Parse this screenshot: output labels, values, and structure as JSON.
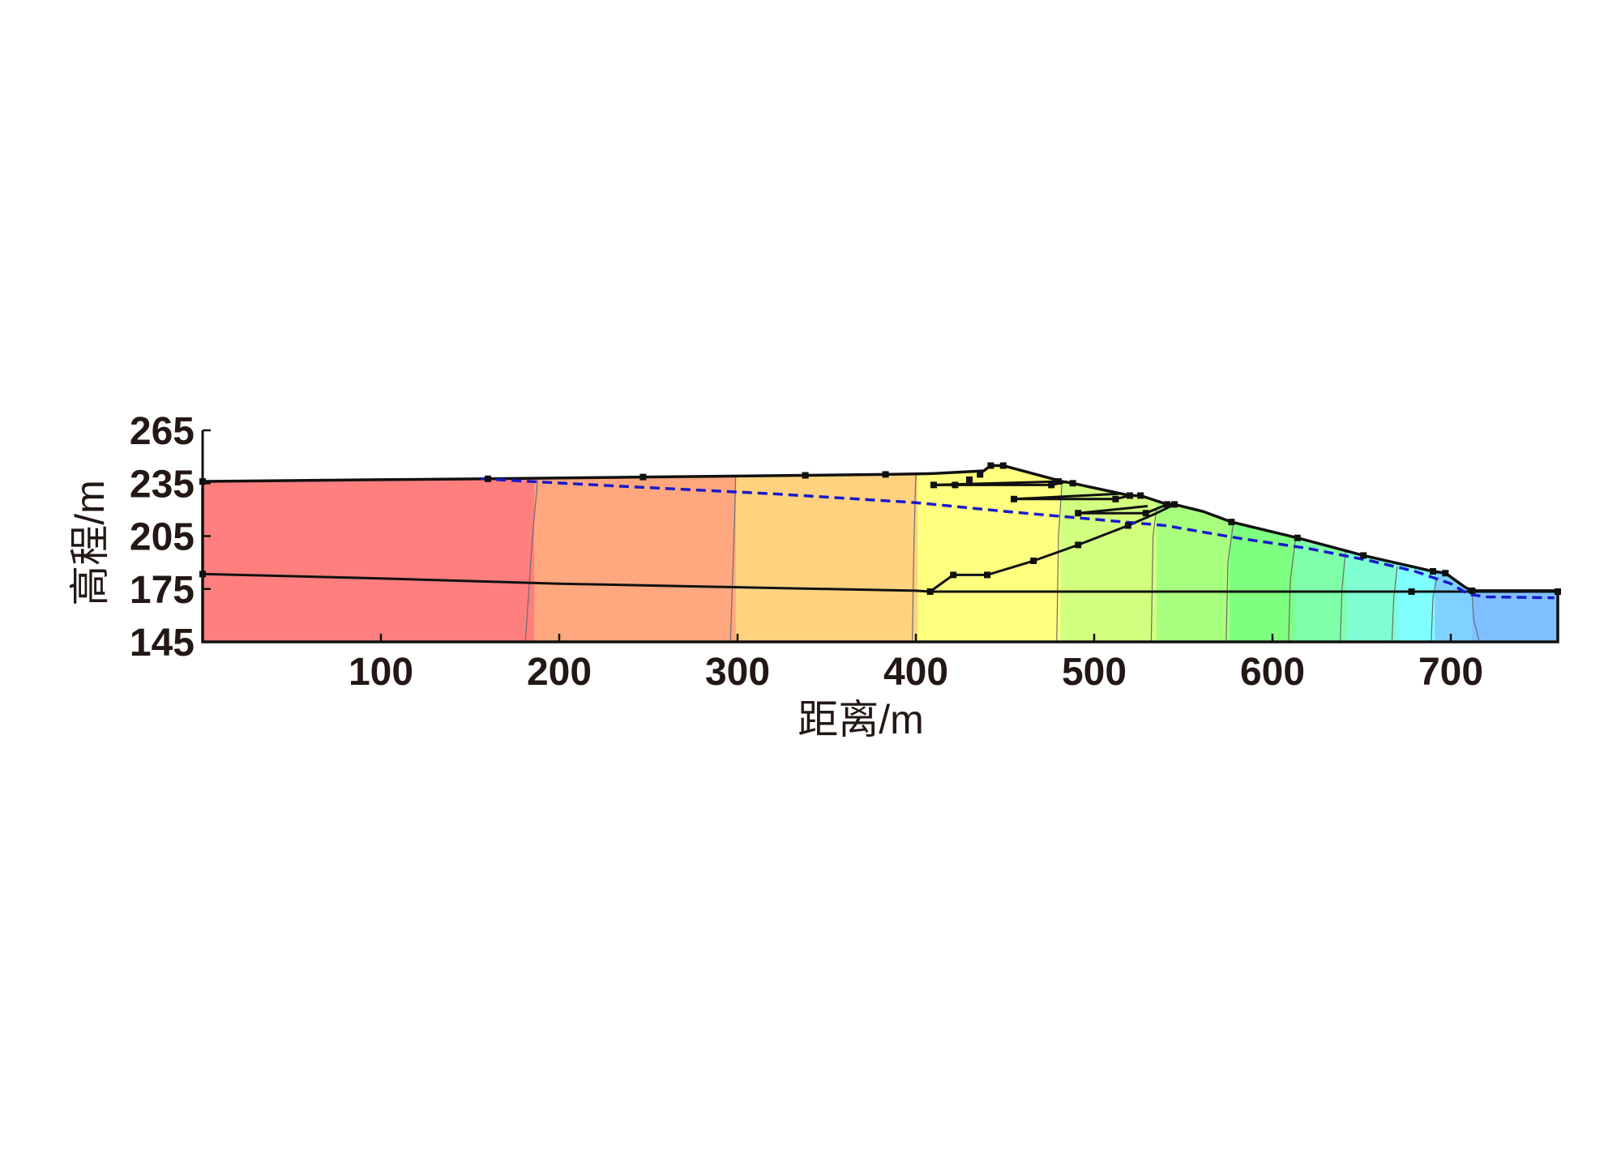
{
  "chart_data": {
    "type": "area",
    "xlabel": "距离/m",
    "ylabel": "高程/m",
    "xlim": [
      0,
      760
    ],
    "ylim": [
      145,
      265
    ],
    "x_ticks": [
      100,
      200,
      300,
      400,
      500,
      600,
      700
    ],
    "y_ticks": [
      145,
      175,
      205,
      235,
      265
    ],
    "x_tick_labels": [
      "100",
      "200",
      "300",
      "400",
      "500",
      "600",
      "700"
    ],
    "y_tick_labels": [
      "145",
      "175",
      "205",
      "235",
      "265"
    ],
    "grid": false,
    "color_bands": [
      {
        "x_from": 0,
        "x_to": 186,
        "color": "#ff7f7f"
      },
      {
        "x_from": 186,
        "x_to": 299,
        "color": "#ffa87f"
      },
      {
        "x_from": 299,
        "x_to": 401,
        "color": "#ffd27f"
      },
      {
        "x_from": 401,
        "x_to": 481,
        "color": "#ffff7f"
      },
      {
        "x_from": 481,
        "x_to": 535,
        "color": "#d2ff7f"
      },
      {
        "x_from": 535,
        "x_to": 576,
        "color": "#a8ff7f"
      },
      {
        "x_from": 576,
        "x_to": 612,
        "color": "#7fff7f"
      },
      {
        "x_from": 612,
        "x_to": 641,
        "color": "#7fffa8"
      },
      {
        "x_from": 641,
        "x_to": 670,
        "color": "#7fffd2"
      },
      {
        "x_from": 670,
        "x_to": 691,
        "color": "#7fffff"
      },
      {
        "x_from": 691,
        "x_to": 712,
        "color": "#7fd2ff"
      },
      {
        "x_from": 712,
        "x_to": 760,
        "color": "#7fbfff"
      }
    ],
    "contour_lines": [
      [
        [
          188,
          238
        ],
        [
          185,
          205
        ],
        [
          181,
          145
        ]
      ],
      [
        [
          299,
          240
        ],
        [
          298,
          205
        ],
        [
          296,
          145
        ]
      ],
      [
        [
          400,
          241
        ],
        [
          399,
          205
        ],
        [
          398,
          145
        ]
      ],
      [
        [
          482,
          236
        ],
        [
          480,
          205
        ],
        [
          479,
          145
        ]
      ],
      [
        [
          535,
          221
        ],
        [
          533,
          205
        ],
        [
          532,
          145
        ]
      ],
      [
        [
          578,
          212
        ],
        [
          575,
          190
        ],
        [
          574,
          145
        ]
      ],
      [
        [
          613,
          204
        ],
        [
          610,
          180
        ],
        [
          609,
          145
        ]
      ],
      [
        [
          641,
          197
        ],
        [
          639,
          175
        ],
        [
          638,
          145
        ]
      ],
      [
        [
          670,
          188
        ],
        [
          668,
          170
        ],
        [
          667,
          145
        ]
      ],
      [
        [
          692,
          181
        ],
        [
          690,
          170
        ],
        [
          689,
          145
        ]
      ],
      [
        [
          712,
          171
        ],
        [
          713,
          157
        ],
        [
          716,
          145
        ]
      ]
    ],
    "boundary": {
      "upstream_surface": [
        [
          0,
          236
        ],
        [
          100,
          237
        ],
        [
          160,
          237.5
        ],
        [
          247,
          238.5
        ],
        [
          338,
          239.5
        ],
        [
          383,
          240
        ],
        [
          410,
          240.5
        ]
      ],
      "dam_crest": [
        [
          410,
          240.5
        ],
        [
          438,
          242
        ],
        [
          442,
          245
        ],
        [
          449,
          245
        ],
        [
          482,
          236
        ],
        [
          488,
          235
        ],
        [
          520,
          228
        ],
        [
          526,
          228
        ],
        [
          541,
          223
        ],
        [
          545,
          223
        ],
        [
          561,
          219
        ],
        [
          577,
          213
        ],
        [
          614,
          204
        ],
        [
          651,
          194
        ],
        [
          690,
          185
        ],
        [
          697,
          184
        ],
        [
          708,
          176
        ],
        [
          712,
          174
        ]
      ],
      "downstream_surface": [
        [
          712,
          174
        ],
        [
          760,
          174
        ]
      ],
      "right_edge": [
        [
          760,
          174
        ],
        [
          760,
          145
        ]
      ]
    },
    "foundation_line": [
      [
        0,
        183.5
      ],
      [
        100,
        181
      ],
      [
        200,
        178
      ],
      [
        300,
        176
      ],
      [
        400,
        174
      ],
      [
        408,
        173.5
      ],
      [
        760,
        173.5
      ]
    ],
    "internal_zone_lines": [
      [
        [
          408,
          173.5
        ],
        [
          421,
          183
        ],
        [
          440,
          183
        ],
        [
          466,
          191
        ],
        [
          491,
          200
        ],
        [
          519,
          211
        ],
        [
          535,
          218
        ],
        [
          545,
          223
        ]
      ],
      [
        [
          410,
          234
        ],
        [
          476,
          234
        ],
        [
          485,
          236
        ]
      ],
      [
        [
          410,
          234
        ],
        [
          480,
          236
        ]
      ],
      [
        [
          455,
          226
        ],
        [
          512,
          226
        ],
        [
          520,
          228
        ]
      ],
      [
        [
          455,
          226
        ],
        [
          514,
          229
        ]
      ],
      [
        [
          491,
          218
        ],
        [
          529,
          218
        ],
        [
          541,
          223
        ]
      ],
      [
        [
          491,
          218
        ],
        [
          530,
          222
        ]
      ]
    ],
    "markers": [
      [
        0,
        236
      ],
      [
        0,
        183.5
      ],
      [
        160,
        237.5
      ],
      [
        247,
        238.5
      ],
      [
        338,
        239.5
      ],
      [
        383,
        240
      ],
      [
        410,
        234
      ],
      [
        422,
        234
      ],
      [
        430,
        237
      ],
      [
        436,
        240
      ],
      [
        442,
        245
      ],
      [
        449,
        245
      ],
      [
        476,
        234
      ],
      [
        480,
        236
      ],
      [
        488,
        235
      ],
      [
        455,
        226
      ],
      [
        512,
        226
      ],
      [
        520,
        228
      ],
      [
        526,
        228
      ],
      [
        491,
        218
      ],
      [
        529,
        218
      ],
      [
        541,
        223
      ],
      [
        545,
        223
      ],
      [
        577,
        213
      ],
      [
        614,
        204
      ],
      [
        651,
        194
      ],
      [
        690,
        185
      ],
      [
        697,
        184
      ],
      [
        712,
        174
      ],
      [
        408,
        173.5
      ],
      [
        421,
        183
      ],
      [
        440,
        183
      ],
      [
        466,
        191
      ],
      [
        491,
        200
      ],
      [
        519,
        211
      ],
      [
        678,
        173.5
      ],
      [
        760,
        173.5
      ]
    ],
    "phreatic_line": {
      "style": "dashed",
      "color": "#1a1acc",
      "points": [
        [
          156,
          237.5
        ],
        [
          240,
          233
        ],
        [
          320,
          229
        ],
        [
          400,
          224
        ],
        [
          450,
          219
        ],
        [
          500,
          214.5
        ],
        [
          540,
          211
        ],
        [
          580,
          204
        ],
        [
          620,
          198
        ],
        [
          655,
          191
        ],
        [
          680,
          185
        ],
        [
          700,
          178
        ],
        [
          710,
          172
        ],
        [
          720,
          170.5
        ],
        [
          758,
          170
        ]
      ]
    }
  }
}
